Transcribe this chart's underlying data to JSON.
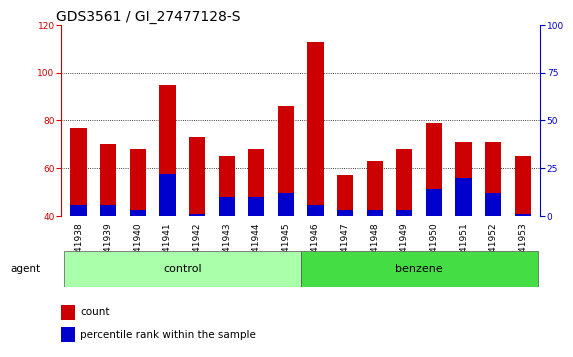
{
  "title": "GDS3561 / GI_27477128-S",
  "samples": [
    "GSM241938",
    "GSM241939",
    "GSM241940",
    "GSM241941",
    "GSM241942",
    "GSM241943",
    "GSM241944",
    "GSM241945",
    "GSM241946",
    "GSM241947",
    "GSM241948",
    "GSM241949",
    "GSM241950",
    "GSM241951",
    "GSM241952",
    "GSM241953"
  ],
  "count_values": [
    77,
    70,
    68,
    95,
    73,
    65,
    68,
    86,
    113,
    57,
    63,
    68,
    79,
    71,
    71,
    65
  ],
  "percentile_values_pct": [
    6,
    6,
    3,
    22,
    1,
    10,
    10,
    12,
    6,
    3,
    3,
    3,
    14,
    20,
    12,
    1
  ],
  "groups": [
    {
      "label": "control",
      "start": 0,
      "end": 8,
      "color": "#aaffaa"
    },
    {
      "label": "benzene",
      "start": 8,
      "end": 16,
      "color": "#44dd44"
    }
  ],
  "ylim_left": [
    40,
    120
  ],
  "ylim_right": [
    0,
    100
  ],
  "yticks_left": [
    40,
    60,
    80,
    100,
    120
  ],
  "yticks_right": [
    0,
    25,
    50,
    75,
    100
  ],
  "bar_color_count": "#cc0000",
  "bar_color_percentile": "#0000cc",
  "background_color": "#ffffff",
  "bar_bottom": 40,
  "bar_width": 0.55,
  "agent_label": "agent",
  "legend_count": "count",
  "legend_percentile": "percentile rank within the sample",
  "title_fontsize": 10,
  "tick_fontsize": 6.5,
  "label_fontsize": 7.5,
  "group_label_fontsize": 8
}
